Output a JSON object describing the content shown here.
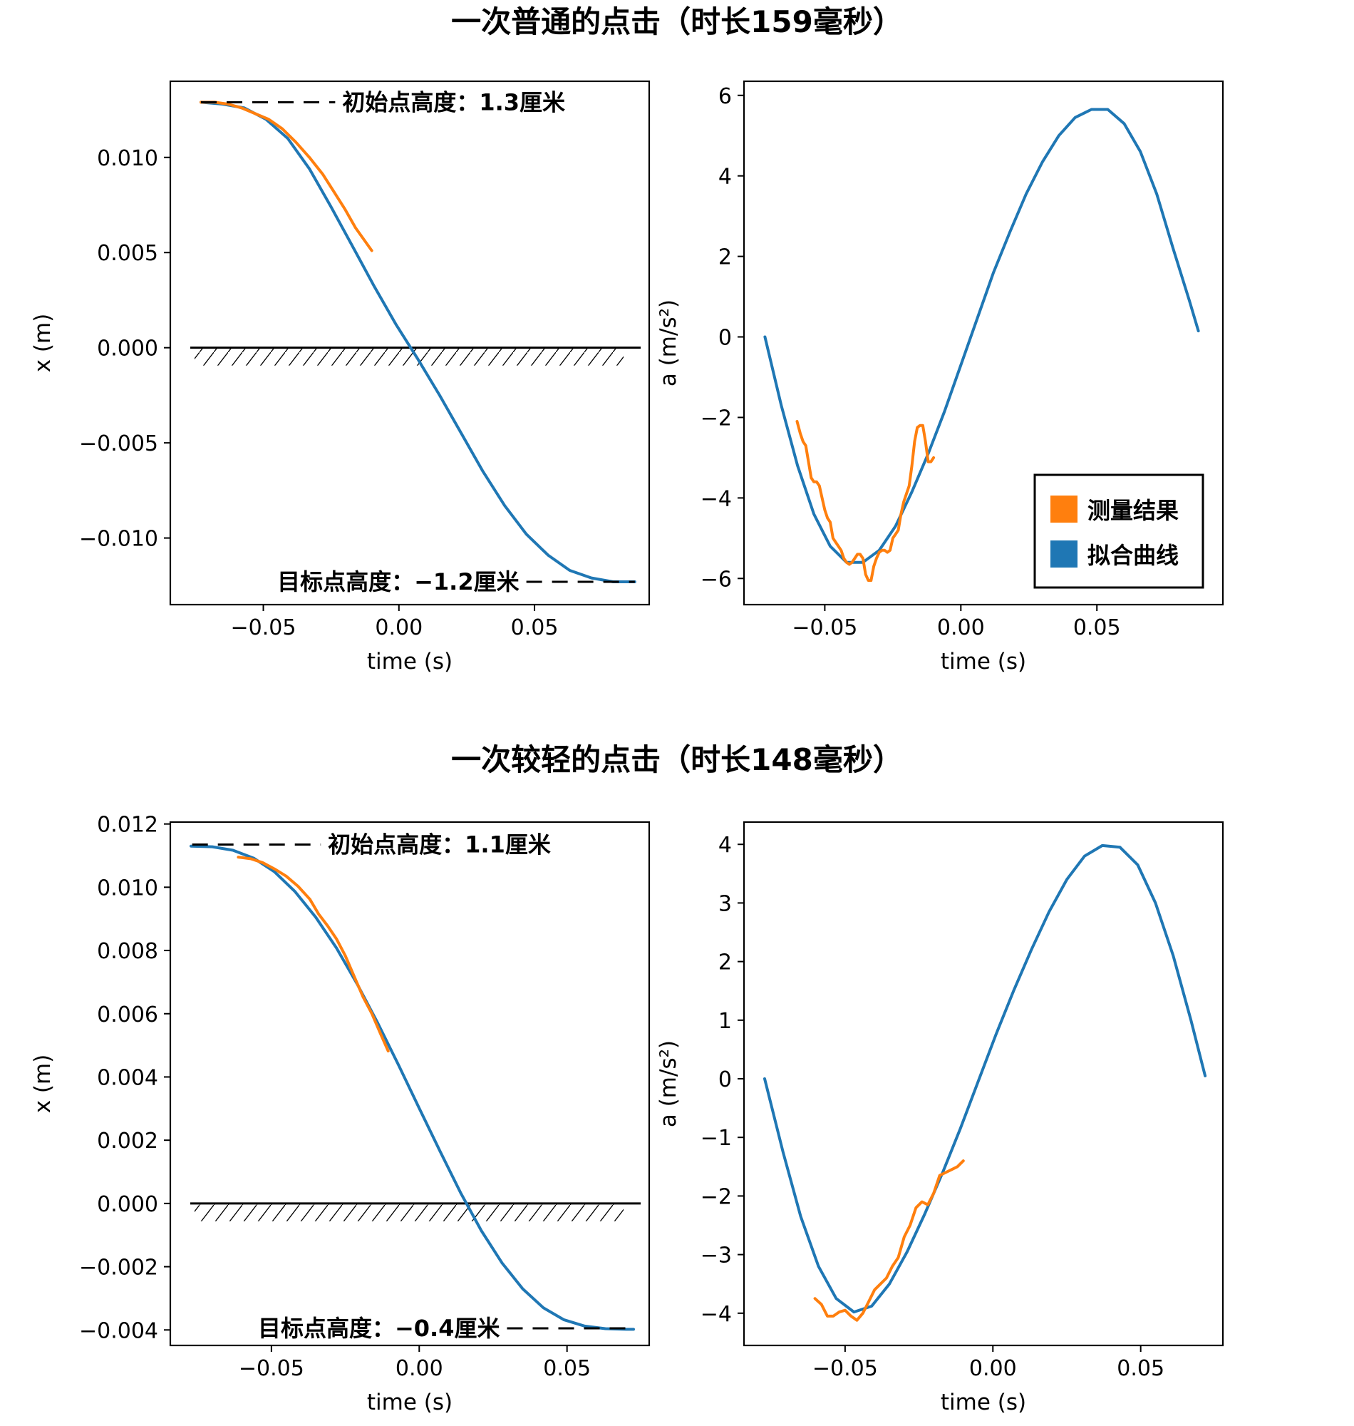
{
  "colors": {
    "fit": "#1f77b4",
    "measured": "#ff7f0e",
    "text": "#000000"
  },
  "legend": {
    "measured": "测量结果",
    "fit": "拟合曲线"
  },
  "chart_data": [
    {
      "panel": "top-left",
      "type": "line",
      "title": "一次普通的点击（时长159毫秒）",
      "xlabel": "time (s)",
      "ylabel": "x (m)",
      "xlim": [
        -0.0843,
        0.0923
      ],
      "ylim": [
        -0.0135,
        0.014
      ],
      "xticks": [
        -0.05,
        0.0,
        0.05
      ],
      "xticklabels": [
        "−0.05",
        "0.00",
        "0.05"
      ],
      "yticks": [
        0.01,
        0.005,
        0.0,
        -0.005,
        -0.01
      ],
      "yticklabels": [
        "0.010",
        "0.005",
        "0.000",
        "−0.005",
        "−0.010"
      ],
      "ground_y": 0.0,
      "hatched_ground": true,
      "annotations": {
        "initial": {
          "text": "初始点高度：1.3厘米",
          "y": 0.0129,
          "line_x": [
            -0.073,
            -0.0235
          ]
        },
        "target": {
          "text": "目标点高度：−1.2厘米",
          "y": -0.0123,
          "line_x": [
            0.047,
            0.087
          ]
        }
      },
      "series": [
        {
          "name": "拟合曲线",
          "color": "#1f77b4",
          "x": [
            -0.073,
            -0.065,
            -0.057,
            -0.049,
            -0.041,
            -0.033,
            -0.025,
            -0.017,
            -0.009,
            -0.001,
            0.007,
            0.015,
            0.023,
            0.031,
            0.039,
            0.047,
            0.055,
            0.063,
            0.071,
            0.079,
            0.087
          ],
          "y": [
            0.0129,
            0.0128,
            0.0126,
            0.012,
            0.011,
            0.0094,
            0.0074,
            0.0053,
            0.0032,
            0.0012,
            -0.0006,
            -0.0025,
            -0.0045,
            -0.0065,
            -0.0083,
            -0.0098,
            -0.0109,
            -0.0117,
            -0.0121,
            -0.0123,
            -0.0123
          ]
        },
        {
          "name": "测量结果",
          "color": "#ff7f0e",
          "x": [
            -0.073,
            -0.068,
            -0.063,
            -0.058,
            -0.053,
            -0.048,
            -0.043,
            -0.038,
            -0.033,
            -0.028,
            -0.024,
            -0.02,
            -0.016,
            -0.013,
            -0.01
          ],
          "y": [
            0.0129,
            0.0129,
            0.0128,
            0.0126,
            0.0123,
            0.012,
            0.0115,
            0.0108,
            0.01,
            0.0091,
            0.0082,
            0.0073,
            0.0063,
            0.0057,
            0.0051
          ]
        }
      ]
    },
    {
      "panel": "top-right",
      "type": "line",
      "xlabel": "time (s)",
      "ylabel": "a (m/s²)",
      "xlim": [
        -0.0797,
        0.0963
      ],
      "ylim": [
        -6.65,
        6.35
      ],
      "xticks": [
        -0.05,
        0.0,
        0.05
      ],
      "xticklabels": [
        "−0.05",
        "0.00",
        "0.05"
      ],
      "yticks": [
        6,
        4,
        2,
        0,
        -2,
        -4,
        -6
      ],
      "yticklabels": [
        "6",
        "4",
        "2",
        "0",
        "−2",
        "−4",
        "−6"
      ],
      "legend_position": "lower-right",
      "series": [
        {
          "name": "拟合曲线",
          "color": "#1f77b4",
          "x": [
            -0.072,
            -0.066,
            -0.06,
            -0.054,
            -0.048,
            -0.042,
            -0.036,
            -0.03,
            -0.024,
            -0.018,
            -0.012,
            -0.006,
            0.0,
            0.006,
            0.012,
            0.018,
            0.024,
            0.03,
            0.036,
            0.042,
            0.048,
            0.054,
            0.06,
            0.066,
            0.072,
            0.078,
            0.084,
            0.0873
          ],
          "y": [
            0.0,
            -1.7,
            -3.2,
            -4.4,
            -5.2,
            -5.6,
            -5.6,
            -5.3,
            -4.7,
            -3.85,
            -2.9,
            -1.85,
            -0.7,
            0.45,
            1.6,
            2.6,
            3.55,
            4.35,
            5.0,
            5.45,
            5.65,
            5.65,
            5.3,
            4.6,
            3.55,
            2.2,
            0.9,
            0.15
          ]
        },
        {
          "name": "测量结果",
          "color": "#ff7f0e",
          "x": [
            -0.0602,
            -0.059,
            -0.058,
            -0.057,
            -0.056,
            -0.055,
            -0.054,
            -0.053,
            -0.052,
            -0.051,
            -0.05,
            -0.049,
            -0.048,
            -0.047,
            -0.046,
            -0.045,
            -0.044,
            -0.043,
            -0.042,
            -0.041,
            -0.04,
            -0.039,
            -0.038,
            -0.037,
            -0.036,
            -0.035,
            -0.034,
            -0.033,
            -0.032,
            -0.031,
            -0.03,
            -0.029,
            -0.028,
            -0.027,
            -0.026,
            -0.025,
            -0.024,
            -0.023,
            -0.022,
            -0.021,
            -0.02,
            -0.019,
            -0.018,
            -0.017,
            -0.016,
            -0.015,
            -0.014,
            -0.013,
            -0.012,
            -0.011,
            -0.01
          ],
          "y": [
            -2.1,
            -2.4,
            -2.6,
            -2.7,
            -3.1,
            -3.5,
            -3.6,
            -3.6,
            -3.7,
            -4.0,
            -4.3,
            -4.5,
            -4.6,
            -5.0,
            -5.1,
            -5.2,
            -5.3,
            -5.5,
            -5.6,
            -5.65,
            -5.6,
            -5.5,
            -5.4,
            -5.4,
            -5.5,
            -5.9,
            -6.05,
            -6.05,
            -5.7,
            -5.5,
            -5.35,
            -5.3,
            -5.3,
            -5.35,
            -5.3,
            -5.0,
            -4.9,
            -4.8,
            -4.4,
            -4.1,
            -3.9,
            -3.7,
            -3.2,
            -2.6,
            -2.25,
            -2.2,
            -2.2,
            -2.6,
            -3.1,
            -3.1,
            -3.0
          ]
        }
      ]
    },
    {
      "panel": "bottom-left",
      "type": "line",
      "title": "一次较轻的点击（时长148毫秒）",
      "xlabel": "time (s)",
      "ylabel": "x (m)",
      "xlim": [
        -0.0842,
        0.0778
      ],
      "ylim": [
        -0.00449,
        0.01206
      ],
      "xticks": [
        -0.05,
        0.0,
        0.05
      ],
      "xticklabels": [
        "−0.05",
        "0.00",
        "0.05"
      ],
      "yticks": [
        0.012,
        0.01,
        0.008,
        0.006,
        0.004,
        0.002,
        0.0,
        -0.002,
        -0.004
      ],
      "yticklabels": [
        "0.012",
        "0.010",
        "0.008",
        "0.006",
        "0.004",
        "0.002",
        "0.000",
        "−0.002",
        "−0.004"
      ],
      "ground_y": 0.0,
      "hatched_ground": true,
      "annotations": {
        "initial": {
          "text": "初始点高度：1.1厘米",
          "y": 0.01135,
          "line_x": [
            -0.0768,
            -0.0333
          ]
        },
        "target": {
          "text": "目标点高度：−0.4厘米",
          "y": -0.00395,
          "line_x": [
            0.0297,
            0.0725
          ]
        }
      },
      "series": [
        {
          "name": "拟合曲线",
          "color": "#1f77b4",
          "x": [
            -0.0772,
            -0.07,
            -0.063,
            -0.056,
            -0.049,
            -0.042,
            -0.035,
            -0.028,
            -0.021,
            -0.014,
            -0.007,
            0.0,
            0.007,
            0.014,
            0.021,
            0.028,
            0.035,
            0.042,
            0.049,
            0.056,
            0.063,
            0.07,
            0.0725
          ],
          "y": [
            0.0113,
            0.01128,
            0.01117,
            0.01092,
            0.01049,
            0.00986,
            0.00905,
            0.00808,
            0.00694,
            0.0057,
            0.00438,
            0.00301,
            0.00166,
            0.00034,
            -0.00086,
            -0.00188,
            -0.0027,
            -0.0033,
            -0.00368,
            -0.00388,
            -0.00396,
            -0.00398,
            -0.00398
          ]
        },
        {
          "name": "测量结果",
          "color": "#ff7f0e",
          "x": [
            -0.0612,
            -0.057,
            -0.053,
            -0.049,
            -0.045,
            -0.041,
            -0.037,
            -0.034,
            -0.031,
            -0.028,
            -0.025,
            -0.022,
            -0.019,
            -0.016,
            -0.013,
            -0.0105
          ],
          "y": [
            0.01095,
            0.0109,
            0.01078,
            0.01058,
            0.01035,
            0.01003,
            0.00962,
            0.00915,
            0.00878,
            0.00837,
            0.00783,
            0.00718,
            0.00653,
            0.006,
            0.00535,
            0.00482
          ]
        }
      ]
    },
    {
      "panel": "bottom-right",
      "type": "line",
      "xlabel": "time (s)",
      "ylabel": "a (m/s²)",
      "xlim": [
        -0.0842,
        0.0778
      ],
      "ylim": [
        -4.55,
        4.38
      ],
      "xticks": [
        -0.05,
        0.0,
        0.05
      ],
      "xticklabels": [
        "−0.05",
        "0.00",
        "0.05"
      ],
      "yticks": [
        4,
        3,
        2,
        1,
        0,
        -1,
        -2,
        -3,
        -4
      ],
      "yticklabels": [
        "4",
        "3",
        "2",
        "1",
        "0",
        "−1",
        "−2",
        "−3",
        "−4"
      ],
      "series": [
        {
          "name": "拟合曲线",
          "color": "#1f77b4",
          "x": [
            -0.0772,
            -0.071,
            -0.065,
            -0.059,
            -0.053,
            -0.047,
            -0.041,
            -0.035,
            -0.029,
            -0.023,
            -0.017,
            -0.011,
            -0.005,
            0.001,
            0.007,
            0.013,
            0.019,
            0.025,
            0.031,
            0.037,
            0.043,
            0.049,
            0.055,
            0.061,
            0.067,
            0.0718
          ],
          "y": [
            0.0,
            -1.25,
            -2.35,
            -3.2,
            -3.75,
            -3.98,
            -3.88,
            -3.5,
            -2.95,
            -2.3,
            -1.6,
            -0.85,
            -0.05,
            0.75,
            1.5,
            2.2,
            2.85,
            3.4,
            3.8,
            3.98,
            3.95,
            3.65,
            3.0,
            2.1,
            1.0,
            0.05
          ]
        },
        {
          "name": "测量结果",
          "color": "#ff7f0e",
          "x": [
            -0.0602,
            -0.058,
            -0.056,
            -0.054,
            -0.052,
            -0.05,
            -0.048,
            -0.046,
            -0.044,
            -0.042,
            -0.04,
            -0.038,
            -0.036,
            -0.034,
            -0.032,
            -0.03,
            -0.028,
            -0.026,
            -0.024,
            -0.022,
            -0.02,
            -0.018,
            -0.016,
            -0.014,
            -0.012,
            -0.01
          ],
          "y": [
            -3.75,
            -3.85,
            -4.05,
            -4.05,
            -3.98,
            -3.95,
            -4.05,
            -4.12,
            -4.0,
            -3.8,
            -3.6,
            -3.5,
            -3.4,
            -3.2,
            -3.05,
            -2.7,
            -2.5,
            -2.2,
            -2.1,
            -2.15,
            -1.95,
            -1.65,
            -1.6,
            -1.55,
            -1.5,
            -1.4
          ]
        }
      ]
    }
  ]
}
